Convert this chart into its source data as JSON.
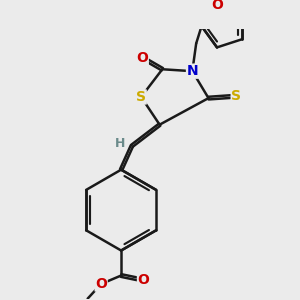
{
  "bg_color": "#ebebeb",
  "bond_color": "#1a1a1a",
  "bond_width": 1.8,
  "atom_colors": {
    "O": "#cc0000",
    "N": "#0000cc",
    "S": "#ccaa00",
    "H": "#6a8a8a"
  },
  "font_size": 10,
  "fig_w": 3.0,
  "fig_h": 3.0,
  "dpi": 100
}
